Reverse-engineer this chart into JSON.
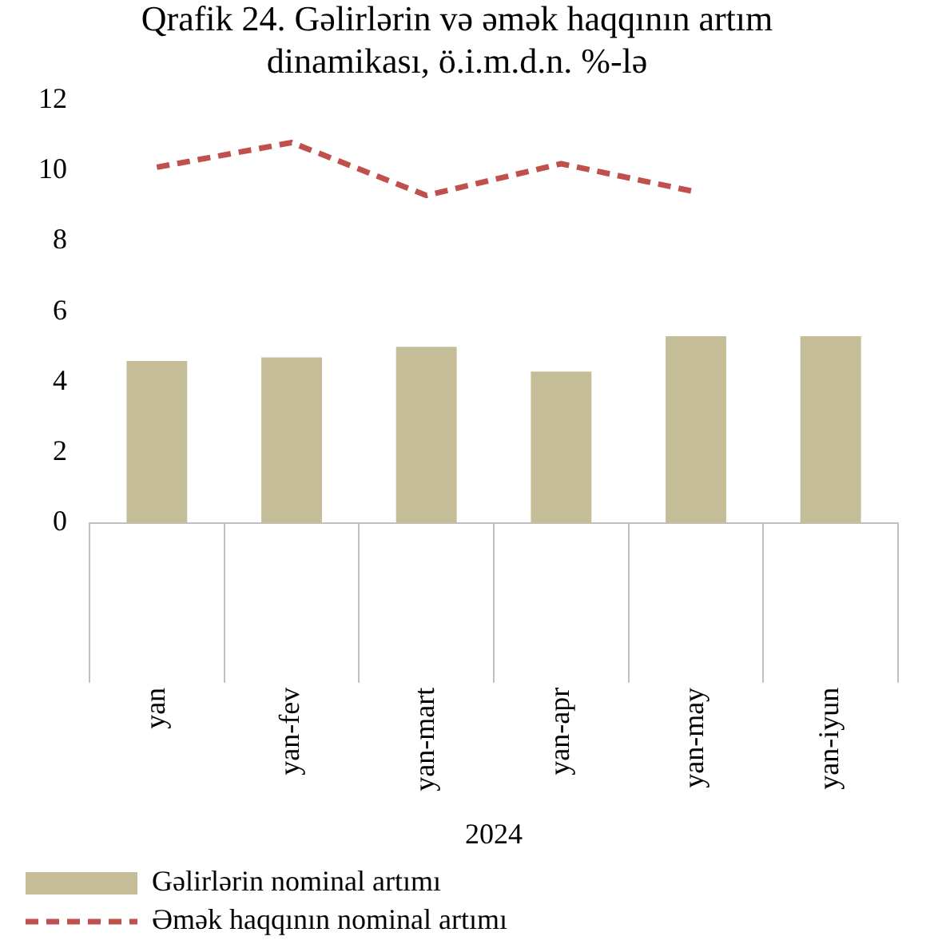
{
  "chart_data": {
    "type": "bar",
    "title": "Qrafik 24. Gəlirlərin və əmək haqqının artım dinamikası, ö.i.m.d.n. %-lə",
    "xlabel": "2024",
    "categories": [
      "yan",
      "yan-fev",
      "yan-mart",
      "yan-apr",
      "yan-may",
      "yan-iyun"
    ],
    "series": [
      {
        "name": "Gəlirlərin nominal artımı",
        "color": "#c4bd97",
        "values": [
          4.6,
          4.7,
          5.0,
          4.3,
          5.3,
          5.3
        ]
      },
      {
        "name": "Əmək haqqının nominal artımı",
        "type": "line",
        "color": "#c0504d",
        "line_style": "dashed",
        "marker": "none",
        "values": [
          10.1,
          10.8,
          9.3,
          10.2,
          9.4,
          null
        ]
      }
    ],
    "ylim": [
      0,
      12
    ],
    "yticks": [
      0,
      2,
      4,
      6,
      8,
      10,
      12
    ],
    "grid": false,
    "legend": "bottom"
  }
}
